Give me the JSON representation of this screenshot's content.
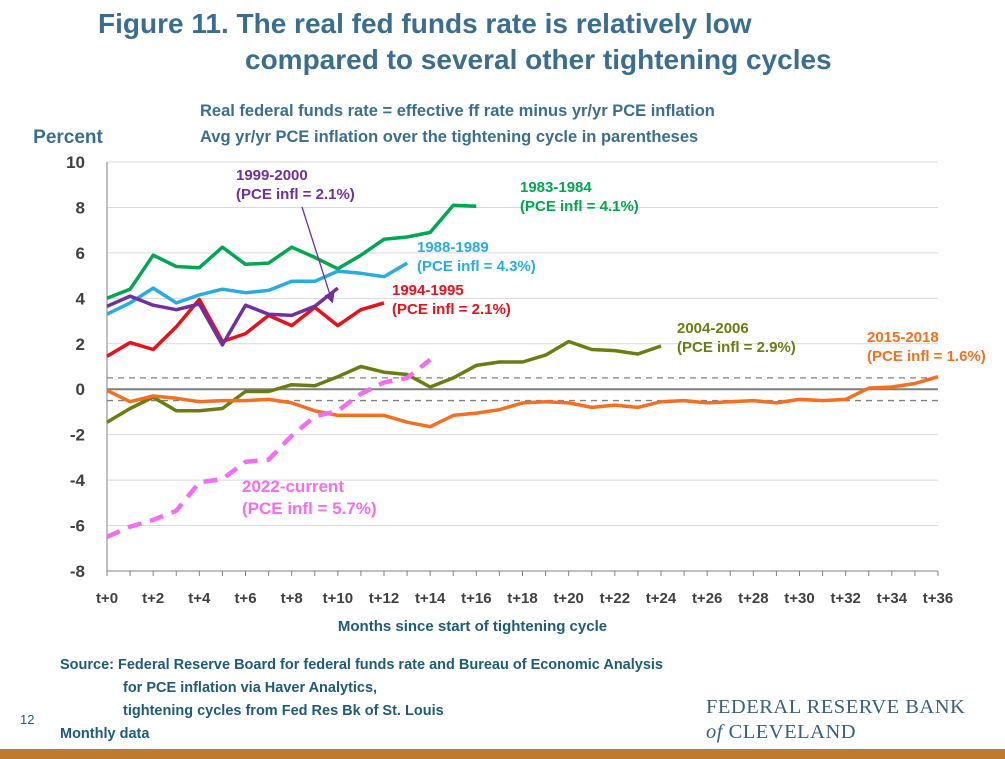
{
  "title_line1": "Figure 11. The real fed funds rate is relatively low",
  "title_line2": "compared to several other tightening cycles",
  "subtitle_line1": "Real federal funds rate = effective ff rate minus yr/yr PCE inflation",
  "subtitle_line2": "Avg yr/yr PCE inflation over the tightening cycle in parentheses",
  "source_lines": [
    "Source: Federal Reserve Board for federal funds rate and Bureau of Economic Analysis",
    "for PCE inflation via Haver Analytics,",
    "tightening cycles from Fed Res Bk of St. Louis",
    "Monthly data"
  ],
  "page_number": "12",
  "logo_line1": "FEDERAL RESERVE BANK",
  "logo_line2_italic": "of",
  "logo_line2": "CLEVELAND",
  "colors": {
    "title": "#3b6e8e",
    "c1983": "#00a651",
    "c1988": "#29abe2",
    "c1994": "#e8111a",
    "c1999": "#7030a0",
    "c2004": "#6b7d12",
    "c2015": "#f36f21",
    "c2022": "#f36df0",
    "bottom_bar": "#c07a2f"
  },
  "chart_data": {
    "type": "line",
    "ylabel": "Percent",
    "xlabel": "Months since start of tightening cycle",
    "ylim": [
      -8,
      10
    ],
    "yticks": [
      10,
      8,
      6,
      4,
      2,
      0,
      -2,
      -4,
      -6,
      -8
    ],
    "xlim": [
      0,
      36
    ],
    "xtick_labels": [
      "t+0",
      "t+2",
      "t+4",
      "t+6",
      "t+8",
      "t+10",
      "t+12",
      "t+14",
      "t+16",
      "t+18",
      "t+20",
      "t+22",
      "t+24",
      "t+26",
      "t+28",
      "t+30",
      "t+32",
      "t+34",
      "t+36"
    ],
    "grid": true,
    "reference_lines": [
      0.5,
      -0.5
    ],
    "series": [
      {
        "name": "1983-1984",
        "label_line1": "1983-1984",
        "label_line2": "(PCE infl = 4.1%)",
        "color_key": "c1983",
        "dashed": false,
        "values": [
          4.0,
          4.4,
          5.9,
          5.4,
          5.35,
          6.25,
          5.5,
          5.55,
          6.25,
          5.8,
          5.3,
          5.9,
          6.6,
          6.7,
          6.9,
          8.1,
          8.05
        ]
      },
      {
        "name": "1988-1989",
        "label_line1": "1988-1989",
        "label_line2": "(PCE infl = 4.3%)",
        "color_key": "c1988",
        "dashed": false,
        "values": [
          3.3,
          3.8,
          4.45,
          3.8,
          4.15,
          4.4,
          4.25,
          4.35,
          4.75,
          4.75,
          5.2,
          5.1,
          4.95,
          5.55
        ]
      },
      {
        "name": "1994-1995",
        "label_line1": "1994-1995",
        "label_line2": "(PCE infl = 2.1%)",
        "color_key": "c1994",
        "dashed": false,
        "values": [
          1.45,
          2.05,
          1.75,
          2.75,
          3.95,
          2.1,
          2.45,
          3.25,
          2.8,
          3.6,
          2.8,
          3.5,
          3.8
        ]
      },
      {
        "name": "1999-2000",
        "label_line1": "1999-2000",
        "label_line2": "(PCE infl = 2.1%)",
        "color_key": "c1999",
        "dashed": false,
        "values": [
          3.65,
          4.1,
          3.7,
          3.5,
          3.75,
          1.95,
          3.7,
          3.3,
          3.25,
          3.65,
          4.45
        ]
      },
      {
        "name": "2004-2006",
        "label_line1": "2004-2006",
        "label_line2": "(PCE infl = 2.9%)",
        "color_key": "c2004",
        "dashed": false,
        "values": [
          -1.45,
          -0.85,
          -0.35,
          -0.95,
          -0.95,
          -0.85,
          -0.1,
          -0.1,
          0.2,
          0.15,
          0.55,
          1.0,
          0.75,
          0.65,
          0.1,
          0.5,
          1.05,
          1.2,
          1.2,
          1.5,
          2.1,
          1.75,
          1.7,
          1.55,
          1.9
        ]
      },
      {
        "name": "2015-2018",
        "label_line1": "2015-2018",
        "label_line2": "(PCE infl = 1.6%)",
        "color_key": "c2015",
        "dashed": false,
        "values": [
          -0.05,
          -0.55,
          -0.3,
          -0.4,
          -0.55,
          -0.5,
          -0.5,
          -0.45,
          -0.6,
          -0.95,
          -1.15,
          -1.15,
          -1.15,
          -1.45,
          -1.65,
          -1.15,
          -1.05,
          -0.9,
          -0.6,
          -0.55,
          -0.6,
          -0.8,
          -0.7,
          -0.8,
          -0.55,
          -0.5,
          -0.6,
          -0.55,
          -0.5,
          -0.6,
          -0.45,
          -0.5,
          -0.45,
          0.05,
          0.1,
          0.25,
          0.55
        ]
      },
      {
        "name": "2022-current",
        "label_line1": "2022-current",
        "label_line2": "(PCE infl = 5.7%)",
        "color_key": "c2022",
        "dashed": true,
        "values": [
          -6.5,
          -6.05,
          -5.75,
          -5.35,
          -4.1,
          -3.95,
          -3.2,
          -3.1,
          -2.05,
          -1.2,
          -0.95,
          -0.2,
          0.3,
          0.5,
          1.3
        ]
      }
    ]
  }
}
